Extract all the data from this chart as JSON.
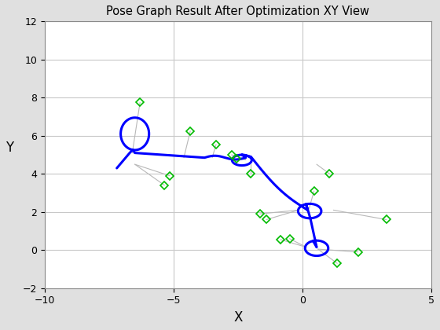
{
  "title": "Pose Graph Result After Optimization XY View",
  "xlabel": "X",
  "ylabel": "Y",
  "xlim": [
    -10,
    5
  ],
  "ylim": [
    -2,
    12
  ],
  "background_color": "#e0e0e0",
  "axes_background": "#ffffff",
  "grid_color": "#c8c8c8",
  "trajectory_color": "#0000ff",
  "trajectory_linewidth": 2.2,
  "landmark_color": "#00bb00",
  "landmark_marker": "D",
  "landmark_markersize": 5,
  "landmark_markeredgewidth": 1.2,
  "constraint_color": "#b8b8b8",
  "constraint_linewidth": 0.8,
  "landmarks": [
    [
      -6.3,
      7.75
    ],
    [
      -5.15,
      3.9
    ],
    [
      -5.35,
      3.4
    ],
    [
      -4.35,
      6.25
    ],
    [
      -3.35,
      5.55
    ],
    [
      -2.75,
      5.0
    ],
    [
      -2.55,
      4.8
    ],
    [
      -2.0,
      4.0
    ],
    [
      -1.65,
      1.9
    ],
    [
      -1.4,
      1.6
    ],
    [
      -0.85,
      0.55
    ],
    [
      -0.5,
      0.6
    ],
    [
      0.45,
      3.1
    ],
    [
      1.05,
      4.0
    ],
    [
      3.25,
      1.6
    ],
    [
      2.15,
      -0.1
    ],
    [
      1.35,
      -0.7
    ]
  ],
  "constraint_pairs": [
    [
      [
        -6.3,
        7.75
      ],
      [
        -6.6,
        5.1
      ]
    ],
    [
      [
        -5.15,
        3.9
      ],
      [
        -6.5,
        4.5
      ]
    ],
    [
      [
        -5.35,
        3.4
      ],
      [
        -6.5,
        4.5
      ]
    ],
    [
      [
        -4.35,
        6.25
      ],
      [
        -4.6,
        4.85
      ]
    ],
    [
      [
        -3.35,
        5.55
      ],
      [
        -3.5,
        4.85
      ]
    ],
    [
      [
        -2.75,
        5.0
      ],
      [
        -2.2,
        4.75
      ]
    ],
    [
      [
        -2.55,
        4.8
      ],
      [
        -2.2,
        4.75
      ]
    ],
    [
      [
        -2.0,
        4.0
      ],
      [
        -2.0,
        4.5
      ]
    ],
    [
      [
        -1.65,
        1.9
      ],
      [
        -0.15,
        2.1
      ]
    ],
    [
      [
        -1.4,
        1.6
      ],
      [
        -0.15,
        2.1
      ]
    ],
    [
      [
        -0.85,
        0.55
      ],
      [
        0.15,
        0.15
      ]
    ],
    [
      [
        -0.5,
        0.6
      ],
      [
        0.15,
        0.15
      ]
    ],
    [
      [
        0.45,
        3.1
      ],
      [
        0.25,
        2.15
      ]
    ],
    [
      [
        1.05,
        4.0
      ],
      [
        0.55,
        4.5
      ]
    ],
    [
      [
        3.25,
        1.6
      ],
      [
        1.2,
        2.1
      ]
    ],
    [
      [
        2.15,
        -0.1
      ],
      [
        0.6,
        0.05
      ]
    ],
    [
      [
        1.35,
        -0.7
      ],
      [
        0.6,
        0.05
      ]
    ]
  ]
}
